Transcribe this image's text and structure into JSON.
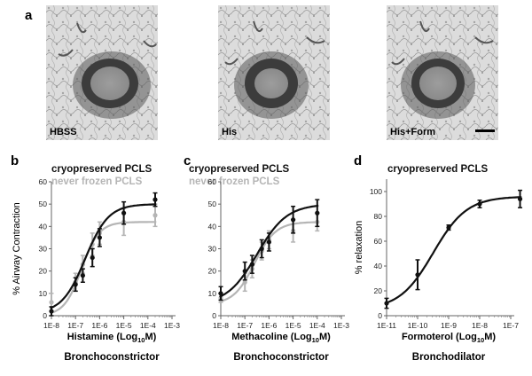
{
  "panel_a": {
    "letter": "a",
    "images": [
      {
        "label": "HBSS"
      },
      {
        "label": "His"
      },
      {
        "label": "His+Form"
      }
    ]
  },
  "colors": {
    "black_series": "#111111",
    "gray_series": "#b5b5b5"
  },
  "chart_data": [
    {
      "letter": "b",
      "type": "line",
      "xscale": "log",
      "xticks": [
        "1E-8",
        "1E-7",
        "1E-6",
        "1E-5",
        "1E-4",
        "1E-3"
      ],
      "xlabel": {
        "main": "Histamine (Log",
        "sub": "10",
        "tail": "M)"
      },
      "ylabel": "% Airway Contraction",
      "yticks": [
        0,
        10,
        20,
        30,
        40,
        50,
        60
      ],
      "ylim": [
        0,
        60
      ],
      "footer": "Bronchoconstrictor",
      "series": [
        {
          "name": "cryopreserved  PCLS",
          "color": "#111111",
          "x": [
            1e-08,
            1e-07,
            2e-07,
            5e-07,
            1e-06,
            1e-05,
            0.0002
          ],
          "y": [
            2,
            14,
            18,
            26,
            35,
            46,
            52
          ],
          "err": [
            2,
            3,
            3,
            4,
            4,
            5,
            3
          ],
          "fit": {
            "bottom": 1,
            "top": 50,
            "logEC50": -6.6,
            "hill": 0.9
          }
        },
        {
          "name": "never frozen PCLS",
          "color": "#b5b5b5",
          "x": [
            1e-08,
            1e-07,
            2e-07,
            5e-07,
            1e-06,
            1e-05,
            0.0002
          ],
          "y": [
            6,
            15,
            23,
            32,
            37,
            42,
            45
          ],
          "err": [
            4,
            4,
            4,
            5,
            5,
            6,
            5
          ],
          "fit": {
            "bottom": 0,
            "top": 42,
            "logEC50": -6.75,
            "hill": 1.2
          }
        }
      ]
    },
    {
      "letter": "c",
      "type": "line",
      "xscale": "log",
      "xticks": [
        "1E-8",
        "1E-7",
        "1E-6",
        "1E-5",
        "1E-4",
        "1E-3"
      ],
      "xlabel": {
        "main": "Methacoline (Log",
        "sub": "10",
        "tail": "M)"
      },
      "ylabel": "",
      "yticks": [
        0,
        10,
        20,
        30,
        40,
        50,
        60
      ],
      "ylim": [
        0,
        60
      ],
      "footer": "Bronchoconstrictor",
      "series": [
        {
          "name": "cryopreserved  PCLS",
          "color": "#111111",
          "x": [
            1e-08,
            1e-07,
            2e-07,
            5e-07,
            1e-06,
            1e-05,
            0.0001
          ],
          "y": [
            10,
            20,
            23,
            30,
            33,
            43,
            46
          ],
          "err": [
            3,
            4,
            4,
            4,
            4,
            6,
            6
          ],
          "fit": {
            "bottom": 5,
            "top": 50,
            "logEC50": -6.5,
            "hill": 0.7
          }
        },
        {
          "name": "never frozen PCLS",
          "color": "#b5b5b5",
          "x": [
            1e-08,
            1e-07,
            2e-07,
            5e-07,
            1e-06,
            1e-05,
            0.0001
          ],
          "y": [
            8,
            15,
            21,
            29,
            34,
            38,
            42
          ],
          "err": [
            2,
            4,
            4,
            4,
            4,
            5,
            4
          ],
          "fit": {
            "bottom": 5,
            "top": 42,
            "logEC50": -6.6,
            "hill": 1.0
          }
        }
      ]
    },
    {
      "letter": "d",
      "type": "line",
      "xscale": "log",
      "xticks": [
        "1E-11",
        "1E-10",
        "1E-9",
        "1E-8",
        "1E-7"
      ],
      "xlabel": {
        "main": "Formoterol (Log",
        "sub": "10",
        "tail": "M)"
      },
      "ylabel": "% relaxation",
      "yticks": [
        0,
        20,
        40,
        60,
        80,
        100
      ],
      "ylim": [
        0,
        110
      ],
      "footer": "Bronchodilator",
      "series": [
        {
          "name": "cryopreserved  PCLS",
          "color": "#111111",
          "x": [
            1e-11,
            1e-10,
            1e-09,
            1e-08,
            2e-07
          ],
          "y": [
            10,
            33,
            71,
            90,
            94
          ],
          "err": [
            4,
            12,
            2,
            3,
            7
          ],
          "fit": {
            "bottom": 5,
            "top": 96,
            "logEC50": -9.5,
            "hill": 0.8
          }
        }
      ]
    }
  ]
}
